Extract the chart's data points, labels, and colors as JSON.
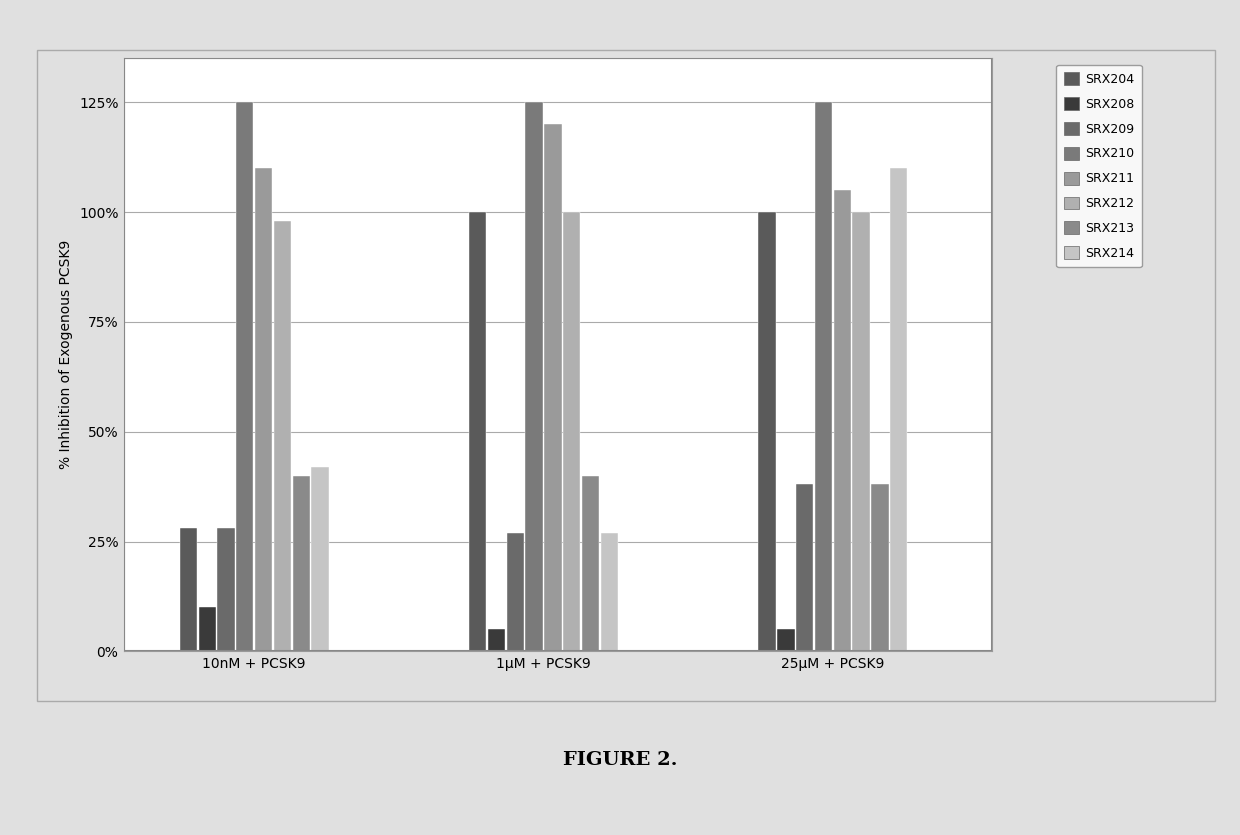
{
  "groups": [
    "10nM + PCSK9",
    "1μM + PCSK9",
    "25μM + PCSK9"
  ],
  "series": [
    "SRX204",
    "SRX208",
    "SRX209",
    "SRX210",
    "SRX211",
    "SRX212",
    "SRX213",
    "SRX214"
  ],
  "values": [
    [
      28,
      10,
      28,
      125,
      110,
      98,
      40,
      42
    ],
    [
      100,
      5,
      27,
      125,
      120,
      100,
      40,
      27
    ],
    [
      100,
      5,
      38,
      125,
      105,
      100,
      38,
      110
    ]
  ],
  "grey_shades": [
    "#5a5a5a",
    "#3a3a3a",
    "#6a6a6a",
    "#7a7a7a",
    "#9a9a9a",
    "#b0b0b0",
    "#8a8a8a",
    "#c5c5c5"
  ],
  "ylabel": "% Inhibition of Exogenous PCSK9",
  "ytick_labels": [
    "0%",
    "25%",
    "50%",
    "75%",
    "100%",
    "125%"
  ],
  "ytick_vals": [
    0,
    25,
    50,
    75,
    100,
    125
  ],
  "page_bg": "#e0e0e0",
  "plot_bg": "#ffffff",
  "legend_bg": "#ffffff",
  "title_text": "FIGURE 2.",
  "bar_width": 0.065,
  "group_positions": [
    1,
    2,
    3
  ]
}
